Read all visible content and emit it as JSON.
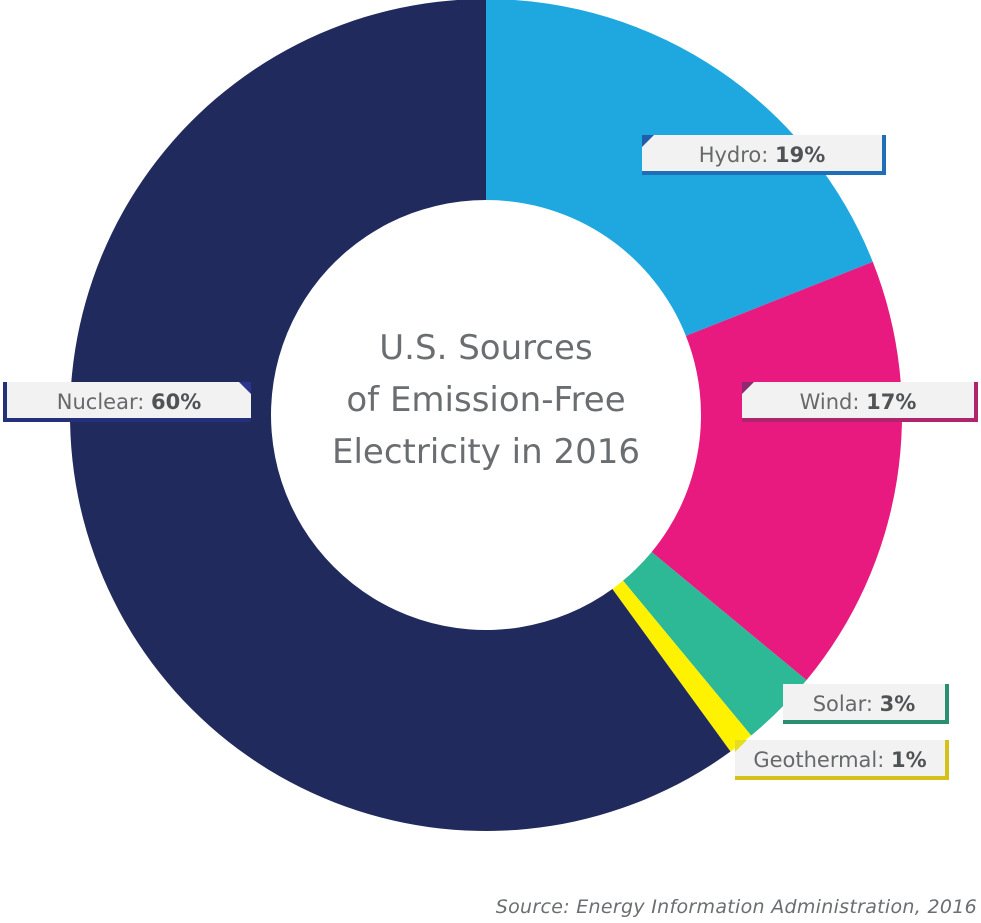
{
  "chart_data": {
    "type": "pie",
    "title_lines": [
      "U.S. Sources",
      "of Emission-Free",
      "Electricity in 2016"
    ],
    "categories": [
      "Hydro",
      "Wind",
      "Solar",
      "Geothermal",
      "Nuclear"
    ],
    "values": [
      19,
      17,
      3,
      1,
      60
    ],
    "colors": [
      "#1fa8df",
      "#e8197f",
      "#2db896",
      "#fff200",
      "#212a5c"
    ],
    "labels": {
      "hydro": {
        "name": "Hydro:",
        "value": "19%"
      },
      "wind": {
        "name": "Wind:",
        "value": "17%"
      },
      "solar": {
        "name": "Solar:",
        "value": "3%"
      },
      "geothermal": {
        "name": "Geothermal:",
        "value": "1%"
      },
      "nuclear": {
        "name": "Nuclear:",
        "value": "60%"
      }
    },
    "source": "Source: Energy Information Administration, 2016"
  }
}
